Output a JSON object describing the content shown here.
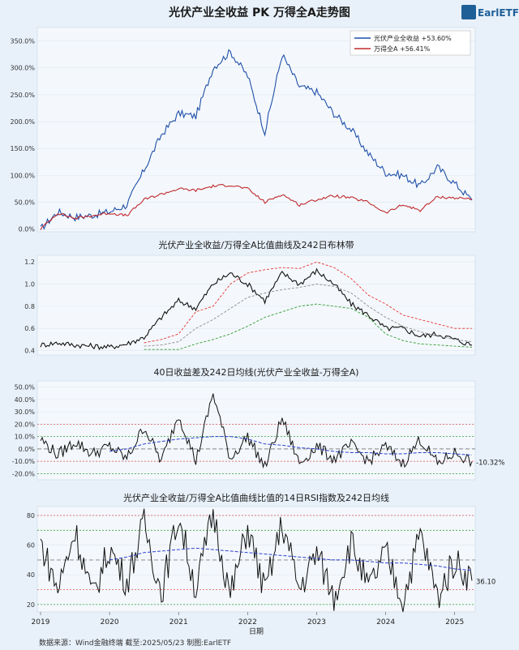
{
  "title": "光伏产业全收益 PK 万得全A走势图",
  "brand": "EarlETF",
  "source": "数据来源：Wind金融终端 截至:2025/05/23 制图:EarlETF",
  "xlabel": "日期",
  "x_ticks": [
    "2019",
    "2020",
    "2021",
    "2022",
    "2023",
    "2024",
    "2025"
  ],
  "colors": {
    "pv": "#1f4fa8",
    "wind": "#c0282d",
    "black": "#111111",
    "upper": "#e8322f",
    "lower": "#2e9a2e",
    "mid": "#8a8a8a",
    "ma": "#2a3fd0",
    "panel": "#f4f8fc",
    "bg": "#e8f1fa",
    "grid": "#ffffff"
  },
  "chart_data": [
    {
      "type": "line",
      "title": "光伏产业全收益 PK 万得全A走势图",
      "legend_position": "top-right",
      "ylim": [
        -5,
        375
      ],
      "yticks": [
        "0.0%",
        "50.0%",
        "100.0%",
        "150.0%",
        "200.0%",
        "250.0%",
        "300.0%",
        "350.0%"
      ],
      "x_range": [
        "2019-01",
        "2025-05"
      ],
      "series": [
        {
          "name": "光伏产业全收益",
          "legend": "光伏产业全收益 +53.60%",
          "final_value": 53.6,
          "x": [
            "2019-01",
            "2019-04",
            "2019-07",
            "2019-10",
            "2020-01",
            "2020-04",
            "2020-07",
            "2020-10",
            "2021-01",
            "2021-04",
            "2021-07",
            "2021-10",
            "2022-01",
            "2022-04",
            "2022-07",
            "2022-10",
            "2023-01",
            "2023-04",
            "2023-07",
            "2023-10",
            "2024-01",
            "2024-04",
            "2024-07",
            "2024-10",
            "2025-01",
            "2025-05"
          ],
          "values": [
            0,
            32,
            22,
            26,
            32,
            45,
            110,
            175,
            215,
            210,
            300,
            330,
            285,
            180,
            325,
            265,
            255,
            215,
            185,
            140,
            105,
            100,
            80,
            115,
            85,
            53.6
          ]
        },
        {
          "name": "万得全A",
          "legend": "万得全A +56.41%",
          "final_value": 56.41,
          "x": [
            "2019-01",
            "2019-04",
            "2019-07",
            "2019-10",
            "2020-01",
            "2020-04",
            "2020-07",
            "2020-10",
            "2021-01",
            "2021-04",
            "2021-07",
            "2021-10",
            "2022-01",
            "2022-04",
            "2022-07",
            "2022-10",
            "2023-01",
            "2023-04",
            "2023-07",
            "2023-10",
            "2024-01",
            "2024-04",
            "2024-07",
            "2024-10",
            "2025-01",
            "2025-05"
          ],
          "values": [
            0,
            30,
            20,
            25,
            30,
            25,
            55,
            65,
            75,
            72,
            80,
            82,
            75,
            50,
            65,
            45,
            55,
            62,
            58,
            50,
            30,
            45,
            35,
            60,
            58,
            56.41
          ]
        }
      ]
    },
    {
      "type": "line",
      "title": "光伏产业全收益/万得全A比值曲线及242日布林带",
      "ylim": [
        0.36,
        1.26
      ],
      "yticks": [
        "0.4",
        "0.6",
        "0.8",
        "1.0",
        "1.2"
      ],
      "series": [
        {
          "name": "ratio",
          "values": [
            0.45,
            0.47,
            0.45,
            0.44,
            0.43,
            0.46,
            0.52,
            0.7,
            0.85,
            0.78,
            1.0,
            1.1,
            1.0,
            0.85,
            1.1,
            1.0,
            1.12,
            1.0,
            0.82,
            0.72,
            0.6,
            0.6,
            0.53,
            0.55,
            0.5,
            0.45
          ]
        },
        {
          "name": "upper",
          "start_index": 6,
          "values": [
            0.47,
            0.5,
            0.55,
            0.75,
            0.8,
            1.0,
            1.1,
            1.13,
            1.15,
            1.14,
            1.2,
            1.15,
            1.05,
            0.9,
            0.82,
            0.72,
            0.68,
            0.64,
            0.6,
            0.6
          ]
        },
        {
          "name": "middle",
          "start_index": 6,
          "values": [
            0.44,
            0.45,
            0.48,
            0.6,
            0.68,
            0.78,
            0.88,
            0.92,
            0.95,
            0.97,
            1.0,
            0.98,
            0.92,
            0.8,
            0.7,
            0.62,
            0.57,
            0.53,
            0.5,
            0.48
          ]
        },
        {
          "name": "lower",
          "start_index": 6,
          "values": [
            0.41,
            0.41,
            0.41,
            0.46,
            0.5,
            0.55,
            0.62,
            0.7,
            0.75,
            0.8,
            0.82,
            0.8,
            0.78,
            0.7,
            0.55,
            0.49,
            0.46,
            0.45,
            0.44,
            0.43
          ]
        }
      ]
    },
    {
      "type": "line",
      "title": "40日收益差及242日均线(光伏产业全收益-万得全A)",
      "ylim": [
        -25,
        55
      ],
      "yticks": [
        "-20.0%",
        "-10.0%",
        "0.0%",
        "10.0%",
        "20.0%",
        "30.0%",
        "40.0%",
        "50.0%"
      ],
      "ref_lines": {
        "red": [
          20,
          -10
        ],
        "green": [
          10,
          -20
        ],
        "gray": [
          0
        ]
      },
      "last_label": "-10.32%",
      "series": [
        {
          "name": "diff",
          "values": [
            8,
            -5,
            6,
            -4,
            2,
            -8,
            18,
            -10,
            28,
            -10,
            45,
            -8,
            10,
            -15,
            25,
            -12,
            2,
            -8,
            3,
            -10,
            2,
            -12,
            8,
            -12,
            -3,
            -10.32
          ]
        },
        {
          "name": "ma242",
          "start_index": 4,
          "values": [
            -2,
            0,
            4,
            6,
            8,
            9,
            10,
            10,
            8,
            4,
            3,
            1,
            0,
            -2,
            -3,
            -3,
            -4,
            -4,
            -3,
            -3,
            -4,
            -5
          ]
        }
      ]
    },
    {
      "type": "line",
      "title": "光伏产业全收益/万得全A比值曲线比值的14日RSI指数及242日均线",
      "ylim": [
        15,
        86
      ],
      "yticks": [
        "20",
        "40",
        "60",
        "80"
      ],
      "ref_lines": {
        "red": [
          80,
          30
        ],
        "green": [
          70,
          20
        ],
        "gray": [
          50
        ]
      },
      "last_label": "36.10",
      "series": [
        {
          "name": "rsi",
          "values": [
            62,
            30,
            70,
            25,
            58,
            35,
            75,
            28,
            80,
            30,
            82,
            25,
            72,
            28,
            75,
            30,
            55,
            25,
            62,
            30,
            55,
            22,
            68,
            25,
            50,
            36.1
          ]
        },
        {
          "name": "ma242",
          "start_index": 4,
          "values": [
            50,
            52,
            55,
            56,
            57,
            58,
            57,
            56,
            55,
            54,
            53,
            52,
            51,
            50,
            50,
            49,
            48,
            48,
            47,
            46,
            44,
            43
          ]
        }
      ]
    }
  ]
}
